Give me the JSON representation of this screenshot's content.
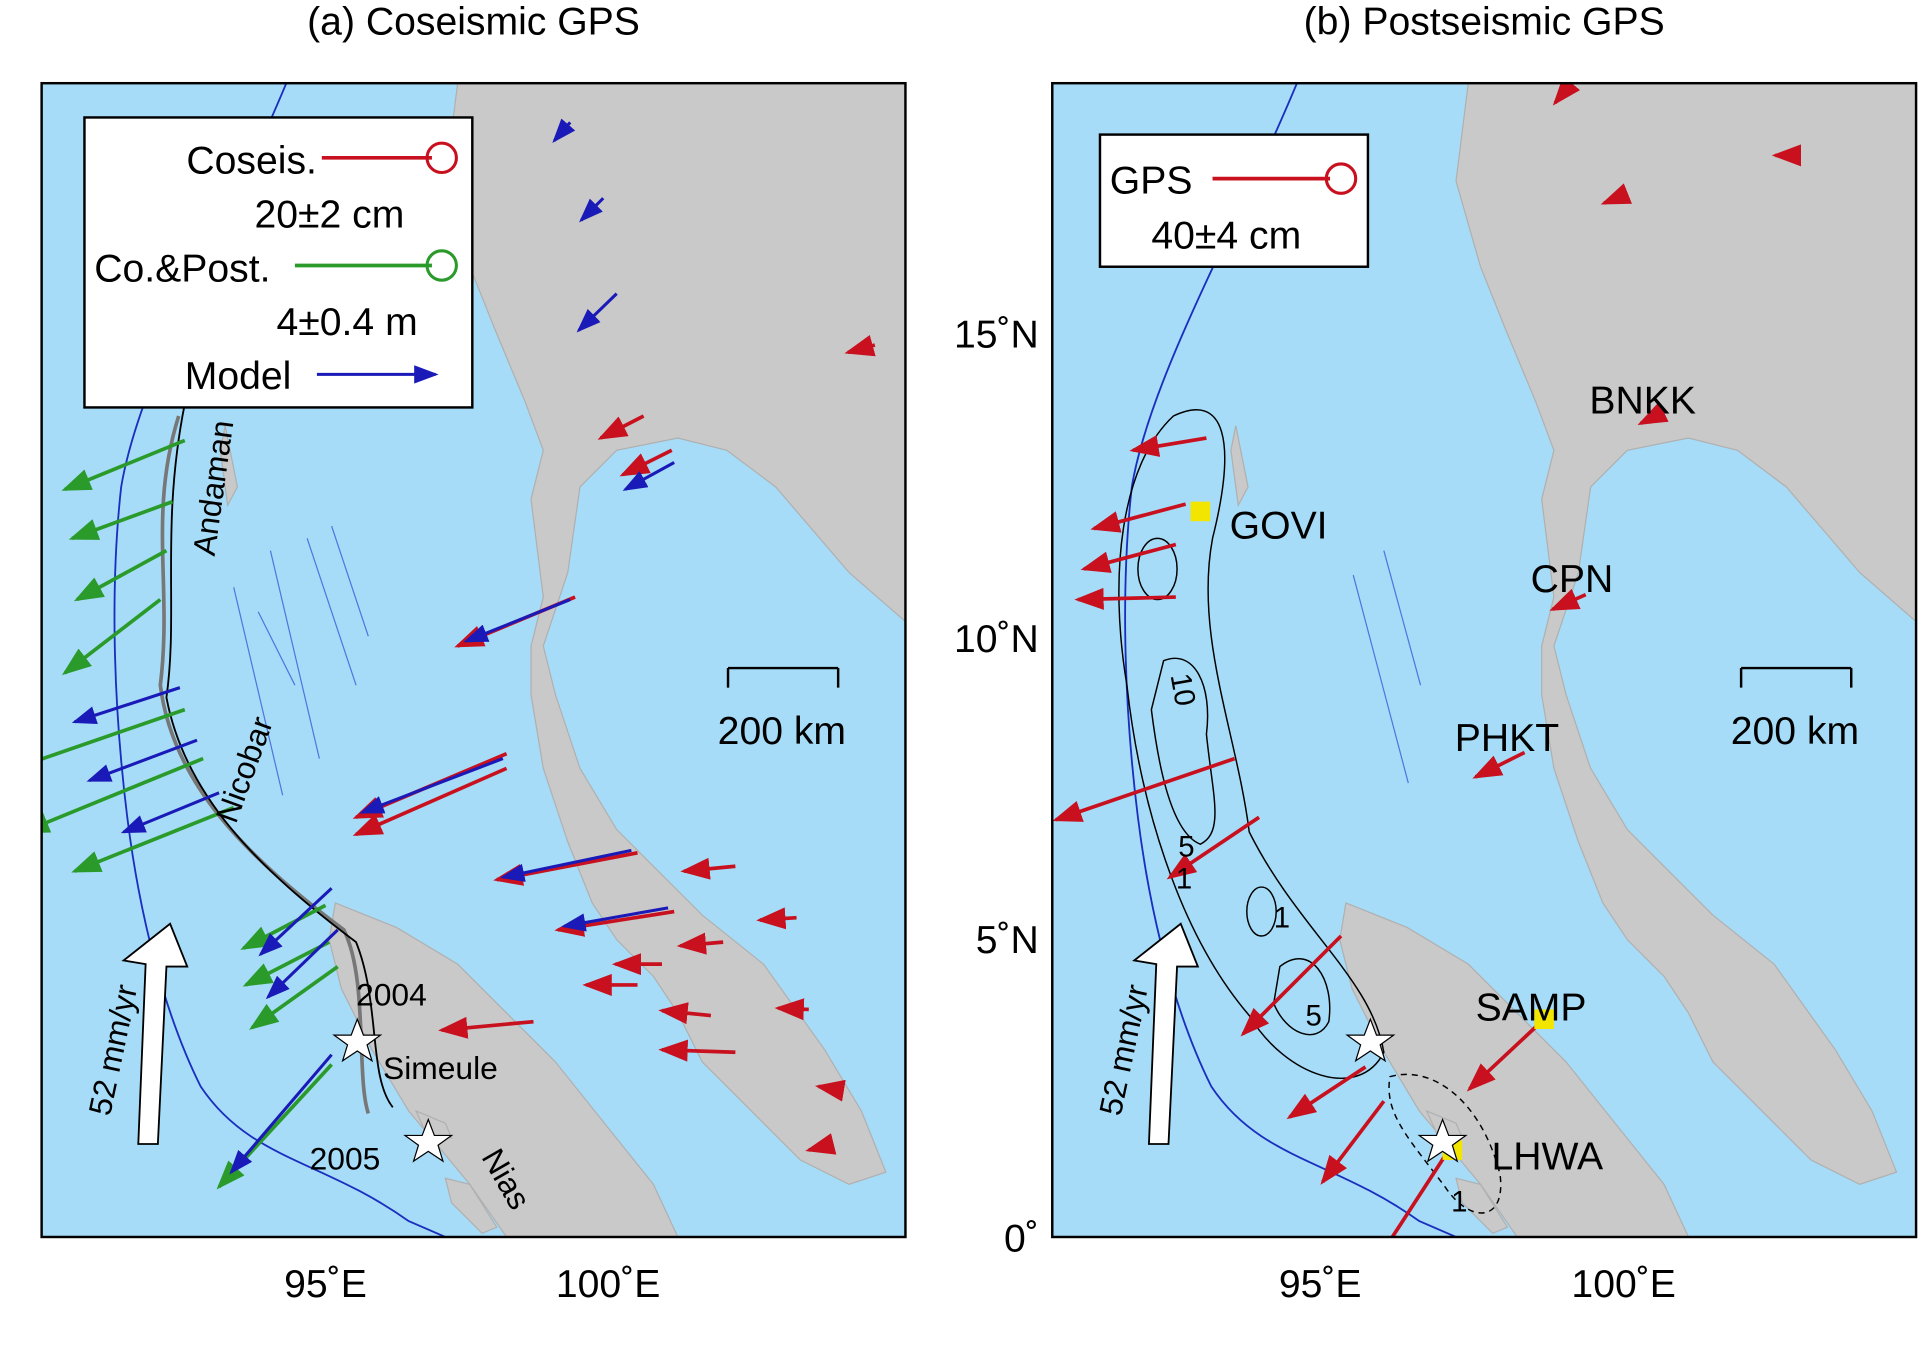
{
  "panels": [
    {
      "title": "(a) Coseismic GPS",
      "legend": [
        "Coseis.",
        "20±2 cm",
        "Co.&Post.",
        "4±0.4 m",
        "Model"
      ],
      "scale_bar": "200 km",
      "annotations": [
        "Andaman",
        "Nicobar",
        "2004",
        "Simeule",
        "2005",
        "Nias",
        "52 mm/yr"
      ],
      "x_labels": [
        "95˚E",
        "100˚E"
      ]
    },
    {
      "title": "(b) Postseismic GPS",
      "legend": [
        "GPS",
        "40±4 cm"
      ],
      "scale_bar": "200 km",
      "stations": [
        "BNKK",
        "GOVI",
        "CPN",
        "PHKT",
        "SAMP",
        "LHWA"
      ],
      "contour_labels": [
        "10",
        "5",
        "1",
        "1",
        "5",
        "1"
      ],
      "annotations": [
        "52 mm/yr"
      ],
      "y_labels": [
        "15˚N",
        "10˚N",
        "5˚N",
        "0˚"
      ],
      "x_labels": [
        "95˚E",
        "100˚E"
      ]
    }
  ]
}
